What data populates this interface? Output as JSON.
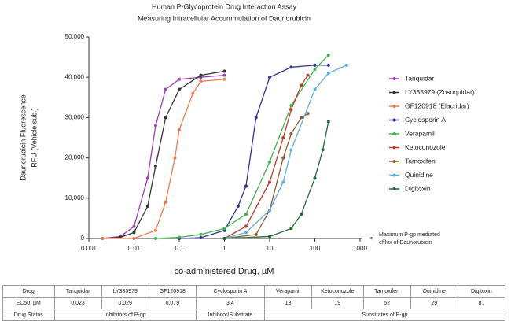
{
  "chart_data": {
    "type": "line",
    "title": "Human P-Glycoprotein Drug Interaction Assay",
    "subtitle": "Measuring Intracellular Accummulation of Daunorubicin",
    "xlabel": "co-administered Drug, µM",
    "ylabel": [
      "Daunorubicin Fluorescence",
      "RFU (Vehicle sub.)"
    ],
    "annotation": [
      "<",
      "Maximum P-gp mediated",
      "efflux of Daunorubicin"
    ],
    "xscale": "log",
    "xlim": [
      0.001,
      1000
    ],
    "xticks": [
      0.001,
      0.01,
      0.1,
      1,
      10,
      100,
      1000
    ],
    "ylim": [
      0,
      50000
    ],
    "yticks": [
      0,
      {
        "value": 10000,
        "label": "10,000"
      },
      {
        "value": 20000,
        "label": "20,000"
      },
      {
        "value": 30000,
        "label": "30,000"
      },
      {
        "value": 40000,
        "label": "40,000"
      },
      {
        "value": 50000,
        "label": "50,000"
      }
    ],
    "grid": false,
    "legend": "right",
    "series": [
      {
        "name": "Tariquidar",
        "color": "#9b3fb5",
        "x": [
          0.002,
          0.005,
          0.01,
          0.02,
          0.03,
          0.05,
          0.1,
          0.3,
          1
        ],
        "values": [
          0,
          500,
          3000,
          15000,
          28000,
          37000,
          39500,
          40000,
          40500
        ]
      },
      {
        "name": "LY335979 (Zosuquidar)",
        "color": "#333333",
        "x": [
          0.002,
          0.005,
          0.01,
          0.02,
          0.03,
          0.05,
          0.1,
          0.3,
          1
        ],
        "values": [
          0,
          300,
          1500,
          8000,
          18000,
          30000,
          37000,
          40500,
          41500
        ]
      },
      {
        "name": "GF120918 (Elacridar)",
        "color": "#f07a4a",
        "x": [
          0.002,
          0.01,
          0.03,
          0.05,
          0.08,
          0.1,
          0.2,
          0.3,
          1
        ],
        "values": [
          0,
          0,
          2000,
          9000,
          20000,
          27000,
          36000,
          39000,
          39500
        ]
      },
      {
        "name": "Cyclosporin A",
        "color": "#2e3192",
        "x": [
          0.1,
          0.3,
          1,
          2,
          3,
          5,
          10,
          30,
          100,
          200
        ],
        "values": [
          0,
          200,
          2000,
          8000,
          13000,
          30000,
          40000,
          42500,
          43000,
          43000
        ]
      },
      {
        "name": "Verapamil",
        "color": "#3cb44b",
        "x": [
          0.03,
          0.1,
          0.3,
          1,
          3,
          10,
          30,
          100,
          200
        ],
        "values": [
          0,
          300,
          1000,
          2500,
          6000,
          19000,
          33000,
          42000,
          45500
        ]
      },
      {
        "name": "Ketoconozole",
        "color": "#c0392b",
        "x": [
          1,
          3,
          10,
          20,
          30,
          50,
          70
        ],
        "values": [
          0,
          3000,
          14000,
          25000,
          32000,
          38000,
          40500
        ]
      },
      {
        "name": "Tamoxifen",
        "color": "#8b5a2b",
        "x": [
          1,
          5,
          10,
          20,
          30,
          50,
          70
        ],
        "values": [
          0,
          1000,
          7000,
          20000,
          26000,
          30000,
          31000
        ]
      },
      {
        "name": "Quinidine",
        "color": "#5dade2",
        "x": [
          1,
          3,
          10,
          20,
          30,
          100,
          200,
          500
        ],
        "values": [
          0,
          1500,
          7000,
          14000,
          22000,
          37000,
          41000,
          43000
        ]
      },
      {
        "name": "Digitoxin",
        "color": "#1e6b30",
        "x": [
          1,
          10,
          30,
          50,
          100,
          150,
          200
        ],
        "values": [
          0,
          500,
          2500,
          6000,
          15000,
          22000,
          29000
        ]
      }
    ]
  },
  "table": {
    "rows": [
      [
        "Drug",
        "Tariquidar",
        "LY335979",
        "GF120918",
        "Cyclosporin A",
        "Verapamil",
        "Ketoconozole",
        "Tamoxifen",
        "Quinidine",
        "Digitoxin"
      ],
      [
        "EC50, µM",
        0.023,
        0.029,
        0.079,
        3.4,
        13,
        19,
        52,
        29,
        81
      ],
      [
        "Drug Status",
        "Inhibitors of P-gp",
        "Inhibitor/Substrate",
        "Substrates of P-gp"
      ]
    ]
  }
}
